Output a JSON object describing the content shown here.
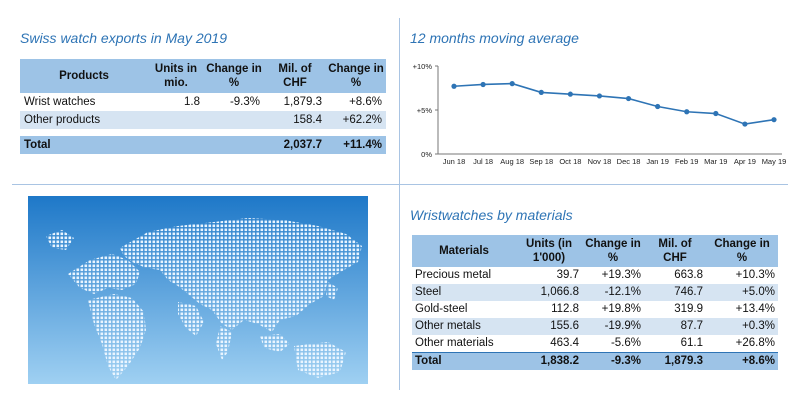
{
  "titles": {
    "exports": "Swiss watch exports in May 2019",
    "moving_avg": "12 months moving average",
    "materials": "Wristwatches by materials"
  },
  "exports_table": {
    "headers": [
      "Products",
      "Units in mio.",
      "Change in %",
      "Mil. of CHF",
      "Change in %"
    ],
    "rows": [
      {
        "product": "Wrist watches",
        "units": "1.8",
        "units_change": "-9.3%",
        "chf": "1,879.3",
        "chf_change": "+8.6%"
      },
      {
        "product": "Other products",
        "units": "",
        "units_change": "",
        "chf": "158.4",
        "chf_change": "+62.2%"
      }
    ],
    "total": {
      "product": "Total",
      "chf": "2,037.7",
      "chf_change": "+11.4%"
    }
  },
  "materials_table": {
    "headers": [
      "Materials",
      "Units (in 1'000)",
      "Change in %",
      "Mil. of CHF",
      "Change in %"
    ],
    "rows": [
      {
        "material": "Precious metal",
        "units": "39.7",
        "units_change": "+19.3%",
        "chf": "663.8",
        "chf_change": "+10.3%"
      },
      {
        "material": "Steel",
        "units": "1,066.8",
        "units_change": "-12.1%",
        "chf": "746.7",
        "chf_change": "+5.0%"
      },
      {
        "material": "Gold-steel",
        "units": "112.8",
        "units_change": "+19.8%",
        "chf": "319.9",
        "chf_change": "+13.4%"
      },
      {
        "material": "Other metals",
        "units": "155.6",
        "units_change": "-19.9%",
        "chf": "87.7",
        "chf_change": "+0.3%"
      },
      {
        "material": "Other materials",
        "units": "463.4",
        "units_change": "-5.6%",
        "chf": "61.1",
        "chf_change": "+26.8%"
      }
    ],
    "total": {
      "material": "Total",
      "units": "1,838.2",
      "units_change": "-9.3%",
      "chf": "1,879.3",
      "chf_change": "+8.6%"
    }
  },
  "chart_data": {
    "type": "line",
    "title": "12 months moving average",
    "categories": [
      "Jun 18",
      "Jul 18",
      "Aug 18",
      "Sep 18",
      "Oct 18",
      "Nov 18",
      "Dec 18",
      "Jan 19",
      "Feb 19",
      "Mar 19",
      "Apr 19",
      "May 19"
    ],
    "series": [
      {
        "values": [
          7.7,
          7.9,
          8.0,
          7.0,
          6.8,
          6.6,
          6.3,
          5.4,
          4.8,
          4.6,
          3.4,
          3.9
        ]
      }
    ],
    "yticks": [
      "0%",
      "+5%",
      "+10%"
    ],
    "ylim": [
      0,
      10
    ],
    "grid": false,
    "color": "#2e74b5"
  },
  "colors": {
    "accent": "#2e74b5",
    "header_fill": "#9dc3e6",
    "alt_fill": "#d6e4f2"
  }
}
